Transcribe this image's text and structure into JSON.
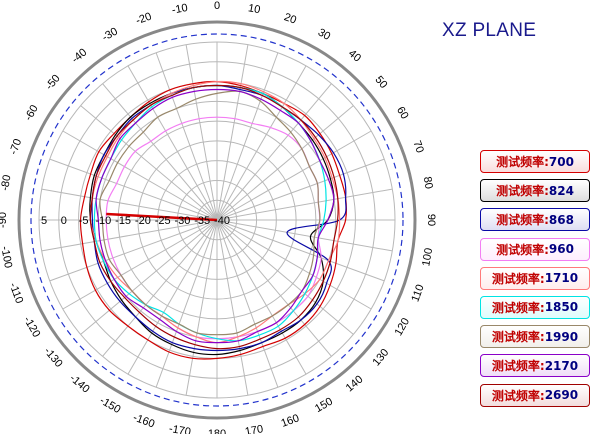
{
  "title": "XZ PLANE",
  "chart_data": {
    "type": "polar-line",
    "title": "XZ PLANE",
    "angle_ticks": [
      0,
      10,
      20,
      30,
      40,
      50,
      60,
      70,
      80,
      90,
      100,
      110,
      120,
      130,
      140,
      150,
      160,
      170,
      180,
      -170,
      -160,
      -150,
      -140,
      -130,
      -120,
      -110,
      -100,
      -90,
      -80,
      -70,
      -60,
      -50,
      -40,
      -30,
      -20,
      -10
    ],
    "radial_ticks": [
      5,
      0,
      -5,
      -10,
      -15,
      -20,
      -25,
      -30,
      -35,
      -40
    ],
    "rlim": [
      -40,
      5
    ],
    "grid": true,
    "series": [
      {
        "name": "测试频率",
        "freq": "700",
        "color": "#d40000",
        "gain": [
          -5,
          -5.5,
          -6,
          -6,
          -5.5,
          -6,
          -6.5,
          -7,
          -7,
          -7.5,
          -9,
          -8,
          -7,
          -6,
          -5.5,
          -5.5,
          -6,
          -5.5,
          -5,
          -4.5,
          -4.5,
          -5,
          -5,
          -4.5,
          -4.5,
          -5,
          -5.5,
          -5.5,
          -6,
          -6,
          -5.5,
          -6,
          -6,
          -5.5,
          -5,
          -5
        ]
      },
      {
        "name": "测试频率",
        "freq": "824",
        "color": "#000000",
        "gain": [
          -6,
          -6,
          -6,
          -7,
          -8,
          -8.5,
          -9,
          -9.5,
          -10,
          -12,
          -16,
          -12,
          -9,
          -7.5,
          -7,
          -7,
          -7,
          -6.5,
          -6,
          -6,
          -6.5,
          -7,
          -8,
          -8.5,
          -9,
          -9.5,
          -9,
          -8,
          -7.5,
          -7,
          -7,
          -6.5,
          -6,
          -6,
          -6,
          -6
        ]
      },
      {
        "name": "测试频率",
        "freq": "868",
        "color": "#0a0aa6",
        "gain": [
          -6,
          -6.5,
          -6.5,
          -7,
          -7,
          -6.5,
          -6,
          -6,
          -7,
          -9,
          -22,
          -10,
          -8,
          -7,
          -7,
          -7.5,
          -7,
          -7,
          -7,
          -7,
          -7,
          -7.5,
          -8,
          -8,
          -8,
          -8,
          -8.5,
          -8.5,
          -8,
          -7.5,
          -7,
          -7,
          -6.5,
          -6.5,
          -6,
          -6
        ]
      },
      {
        "name": "测试频率",
        "freq": "960",
        "color": "#f37ef3",
        "gain": [
          -14,
          -14,
          -14,
          -13,
          -12,
          -12,
          -13,
          -13,
          -14,
          -14,
          -14,
          -12,
          -11,
          -10,
          -10,
          -10,
          -10,
          -10,
          -10,
          -10,
          -11,
          -12,
          -12,
          -12,
          -12,
          -12,
          -12,
          -12,
          -12,
          -13,
          -13,
          -13,
          -14,
          -14,
          -14,
          -14
        ]
      },
      {
        "name": "测试频率",
        "freq": "1710",
        "color": "#ff7a7a",
        "gain": [
          -5,
          -5,
          -5.5,
          -6,
          -7,
          -8,
          -8.5,
          -9,
          -9,
          -9,
          -9,
          -10,
          -10,
          -11,
          -12,
          -12,
          -11,
          -10,
          -9,
          -10,
          -11,
          -12,
          -12,
          -12,
          -11,
          -10,
          -9,
          -8,
          -8,
          -8,
          -8,
          -7.5,
          -7,
          -6.5,
          -6,
          -5.5
        ]
      },
      {
        "name": "测试频率",
        "freq": "1850",
        "color": "#00e4e4",
        "gain": [
          -6,
          -6,
          -6,
          -7,
          -8,
          -9,
          -10,
          -11,
          -12,
          -13,
          -14,
          -13,
          -12,
          -11,
          -10,
          -9,
          -9,
          -9,
          -10,
          -11,
          -12,
          -13,
          -12,
          -11,
          -10,
          -9.5,
          -9,
          -9,
          -9,
          -9,
          -9,
          -8.5,
          -8,
          -7,
          -6.5,
          -6
        ]
      },
      {
        "name": "测试频率",
        "freq": "1990",
        "color": "#99886a",
        "gain": [
          -8,
          -7,
          -8,
          -10,
          -11,
          -12,
          -13,
          -13,
          -14,
          -14,
          -15,
          -14,
          -13,
          -12,
          -12,
          -12,
          -12,
          -11,
          -11,
          -11,
          -12,
          -12,
          -12,
          -12,
          -12,
          -11,
          -11,
          -11,
          -10,
          -11,
          -11,
          -11,
          -11,
          -10,
          -10,
          -9
        ]
      },
      {
        "name": "测试频率",
        "freq": "2170",
        "color": "#8a00c8",
        "gain": [
          -7,
          -7,
          -7.5,
          -8,
          -8,
          -9,
          -10,
          -10,
          -10,
          -12,
          -14,
          -13,
          -12,
          -12,
          -11,
          -10,
          -10,
          -9,
          -9,
          -9,
          -10,
          -11,
          -11,
          -10,
          -10,
          -10,
          -10,
          -10,
          -9,
          -9,
          -9,
          -8,
          -8,
          -7.5,
          -7,
          -7
        ]
      },
      {
        "name": "测试频率",
        "freq": "2690",
        "color": "#a00000",
        "gain": [
          -6,
          -6,
          -6.5,
          -7,
          -7,
          -7.5,
          -8,
          -8.5,
          -9,
          -9.5,
          -10,
          -9.5,
          -9,
          -8.5,
          -8,
          -8,
          -8,
          -7.5,
          -7.5,
          -8,
          -8.5,
          -9,
          -9.5,
          -9.5,
          -9,
          -8.5,
          -8.5,
          -8,
          -8,
          -7.5,
          -7.5,
          -7,
          -7,
          -6.5,
          -6.5,
          -6
        ]
      }
    ]
  }
}
